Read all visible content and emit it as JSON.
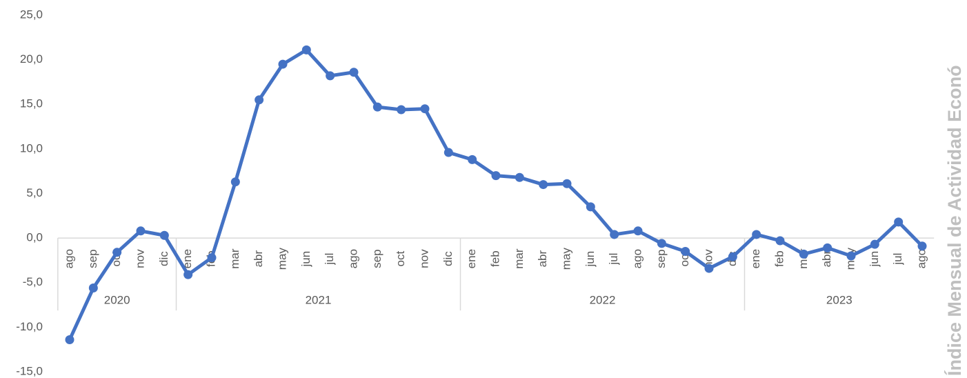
{
  "chart_data": {
    "type": "line",
    "side_title": "Índice Mensual de Actividad Econó",
    "groups": [
      {
        "name": "2020",
        "categories": [
          "ago",
          "sep",
          "oct",
          "nov",
          "dic"
        ]
      },
      {
        "name": "2021",
        "categories": [
          "ene",
          "feb",
          "mar",
          "abr",
          "may",
          "jun",
          "jul",
          "ago",
          "sep",
          "oct",
          "nov",
          "dic"
        ]
      },
      {
        "name": "2022",
        "categories": [
          "ene",
          "feb",
          "mar",
          "abr",
          "may",
          "jun",
          "jul",
          "ago",
          "sep",
          "oct",
          "nov",
          "dic"
        ]
      },
      {
        "name": "2023",
        "categories": [
          "ene",
          "feb",
          "mar",
          "abr",
          "may",
          "jun",
          "jul",
          "ago"
        ]
      }
    ],
    "series": [
      {
        "color": "#4472c4",
        "values": [
          -11.4,
          -5.6,
          -1.6,
          0.8,
          0.3,
          -4.1,
          -2.2,
          6.3,
          15.5,
          19.5,
          21.1,
          18.2,
          18.6,
          14.7,
          14.4,
          14.5,
          9.6,
          8.8,
          7.0,
          6.8,
          6.0,
          6.1,
          3.5,
          0.4,
          0.8,
          -0.6,
          -1.5,
          -3.4,
          -2.1,
          0.4,
          -0.3,
          -1.8,
          -1.1,
          -2.0,
          -0.7,
          1.8,
          -0.9
        ]
      }
    ],
    "ylim": [
      -15,
      25
    ],
    "yticks": [
      {
        "value": -15,
        "label": "-15,0"
      },
      {
        "value": -10,
        "label": "-10,0"
      },
      {
        "value": -5,
        "label": "-5,0"
      },
      {
        "value": 0,
        "label": "0,0"
      },
      {
        "value": 5,
        "label": "5,0"
      },
      {
        "value": 10,
        "label": "10,0"
      },
      {
        "value": 15,
        "label": "15,0"
      },
      {
        "value": 20,
        "label": "20,0"
      },
      {
        "value": 25,
        "label": "25,0"
      }
    ]
  }
}
